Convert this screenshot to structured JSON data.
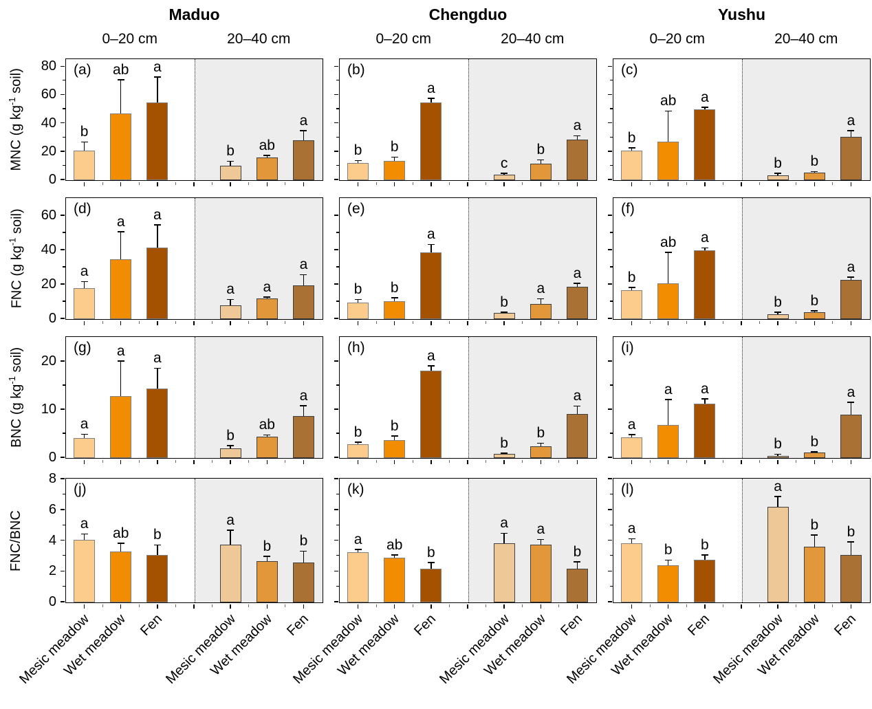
{
  "chart_data": {
    "type": "bar",
    "title": "",
    "sites": [
      "Maduo",
      "Chengduo",
      "Yushu"
    ],
    "depth_labels": [
      "0–20 cm",
      "20–40 cm"
    ],
    "categories": [
      "Mesic meadow",
      "Wet meadow",
      "Fen"
    ],
    "grid": false,
    "legend_position": "none",
    "x_tick_label_rotation_deg": 45,
    "rows": [
      {
        "ylabel": "MNC (g kg⁻¹ soil)",
        "ylabel_parts": {
          "pre": "MNC (g kg",
          "sup": "-1",
          "post": " soil)"
        },
        "ylim": [
          0,
          85
        ],
        "yticks": [
          0,
          20,
          40,
          60,
          80
        ],
        "yminor": [
          10,
          30,
          50,
          70
        ]
      },
      {
        "ylabel": "FNC (g kg⁻¹ soil)",
        "ylabel_parts": {
          "pre": "FNC (g kg",
          "sup": "-1",
          "post": " soil)"
        },
        "ylim": [
          0,
          70
        ],
        "yticks": [
          0,
          20,
          40,
          60
        ],
        "yminor": [
          10,
          30,
          50
        ]
      },
      {
        "ylabel": "BNC (g kg⁻¹ soil)",
        "ylabel_parts": {
          "pre": "BNC (g kg",
          "sup": "-1",
          "post": " soil)"
        },
        "ylim": [
          0,
          25
        ],
        "yticks": [
          0,
          10,
          20
        ],
        "yminor": [
          5,
          15
        ]
      },
      {
        "ylabel": "FNC/BNC",
        "ylabel_parts": {
          "pre": "FNC/BNC",
          "sup": "",
          "post": ""
        },
        "ylim": [
          0,
          8
        ],
        "yticks": [
          0,
          2,
          4,
          6,
          8
        ],
        "yminor": [
          1,
          3,
          5,
          7
        ]
      }
    ],
    "bar_order_note": "first 3 values = 0-20 cm (Mesic meadow, Wet meadow, Fen); last 3 = 20-40 cm",
    "panels": [
      {
        "label": "(a)",
        "site": "Maduo",
        "row": 0,
        "values": [
          21,
          47,
          55,
          10,
          16,
          28
        ],
        "errors": [
          6,
          24,
          18,
          3.5,
          1.5,
          7
        ],
        "letters": [
          "b",
          "ab",
          "a",
          "b",
          "ab",
          "a"
        ]
      },
      {
        "label": "(b)",
        "site": "Chengduo",
        "row": 0,
        "values": [
          12,
          13.5,
          55,
          4,
          11.5,
          28.5
        ],
        "errors": [
          2,
          3,
          3,
          1,
          3,
          3
        ],
        "letters": [
          "b",
          "b",
          "a",
          "c",
          "b",
          "a"
        ]
      },
      {
        "label": "(c)",
        "site": "Yushu",
        "row": 0,
        "values": [
          21,
          27,
          50,
          3.6,
          5.3,
          30.5
        ],
        "errors": [
          2,
          22,
          1.5,
          1.5,
          0.8,
          4.5
        ],
        "letters": [
          "b",
          "ab",
          "a",
          "b",
          "b",
          "a"
        ]
      },
      {
        "label": "(d)",
        "site": "Maduo",
        "row": 1,
        "values": [
          18,
          35,
          41.5,
          8,
          12,
          19.5
        ],
        "errors": [
          4,
          16,
          13.5,
          3.5,
          1,
          6.5
        ],
        "letters": [
          "a",
          "a",
          "a",
          "a",
          "a",
          "a"
        ]
      },
      {
        "label": "(e)",
        "site": "Chengduo",
        "row": 1,
        "values": [
          9.5,
          10.5,
          39,
          3.5,
          9,
          19
        ],
        "errors": [
          2,
          2,
          4.5,
          0.7,
          3,
          2
        ],
        "letters": [
          "b",
          "b",
          "a",
          "b",
          "a",
          "a"
        ]
      },
      {
        "label": "(f)",
        "site": "Yushu",
        "row": 1,
        "values": [
          17,
          21,
          40,
          3,
          4.2,
          23
        ],
        "errors": [
          1.5,
          18,
          1.5,
          1.2,
          0.8,
          1.5
        ],
        "letters": [
          "b",
          "ab",
          "a",
          "b",
          "b",
          "a"
        ]
      },
      {
        "label": "(g)",
        "site": "Maduo",
        "row": 2,
        "values": [
          4.2,
          12.8,
          14.5,
          2,
          4.4,
          8.7
        ],
        "errors": [
          0.8,
          7.4,
          4.2,
          0.6,
          0.4,
          2.2
        ],
        "letters": [
          "a",
          "a",
          "a",
          "b",
          "ab",
          "a"
        ]
      },
      {
        "label": "(h)",
        "site": "Chengduo",
        "row": 2,
        "values": [
          2.8,
          3.7,
          18.2,
          0.9,
          2.4,
          9.2
        ],
        "errors": [
          0.5,
          0.9,
          1,
          0.15,
          0.7,
          1.6
        ],
        "letters": [
          "b",
          "b",
          "a",
          "b",
          "b",
          "a"
        ]
      },
      {
        "label": "(i)",
        "site": "Yushu",
        "row": 2,
        "values": [
          4.3,
          6.8,
          11.3,
          0.5,
          1.1,
          9
        ],
        "errors": [
          0.6,
          5.4,
          1,
          0.35,
          0.2,
          2.6
        ],
        "letters": [
          "a",
          "a",
          "a",
          "b",
          "b",
          "a"
        ]
      },
      {
        "label": "(j)",
        "site": "Maduo",
        "row": 3,
        "values": [
          4.05,
          3.3,
          3.1,
          3.75,
          2.7,
          2.6
        ],
        "errors": [
          0.4,
          0.55,
          0.65,
          0.95,
          0.3,
          0.75
        ],
        "letters": [
          "a",
          "ab",
          "b",
          "a",
          "b",
          "b"
        ]
      },
      {
        "label": "(k)",
        "site": "Chengduo",
        "row": 3,
        "values": [
          3.25,
          2.9,
          2.2,
          3.85,
          3.75,
          2.2
        ],
        "errors": [
          0.2,
          0.2,
          0.4,
          0.65,
          0.35,
          0.45
        ],
        "letters": [
          "a",
          "ab",
          "b",
          "a",
          "a",
          "b"
        ]
      },
      {
        "label": "(l)",
        "site": "Yushu",
        "row": 3,
        "values": [
          3.85,
          2.4,
          2.75,
          6.2,
          3.6,
          3.1
        ],
        "errors": [
          0.3,
          0.35,
          0.35,
          0.7,
          0.8,
          0.85
        ],
        "letters": [
          "a",
          "b",
          "b",
          "a",
          "b",
          "b"
        ]
      }
    ],
    "colors": {
      "bars_0_20": [
        "#FBCC8C",
        "#F28C00",
        "#A45200"
      ],
      "bars_20_40": [
        "#EEC897",
        "#E2973B",
        "#AA7134"
      ],
      "right_half_bg": "#EDEDED",
      "bar_border_0_20": "#808080",
      "bar_border_20_40": "#3F3F3F",
      "error_bar": "#000000",
      "text": "#000000"
    }
  }
}
